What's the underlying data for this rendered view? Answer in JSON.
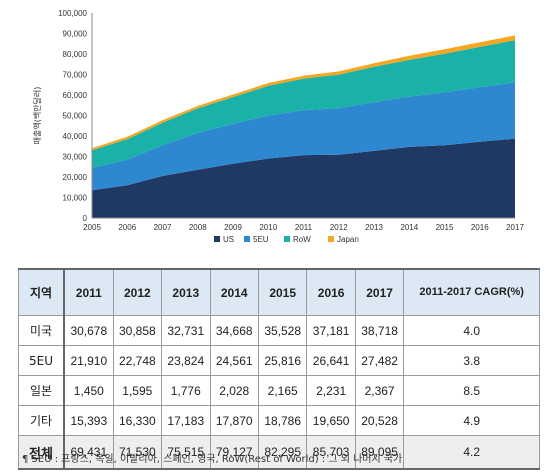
{
  "chart_data": {
    "type": "area",
    "stacked": true,
    "ylabel": "매출액(백만달러)",
    "ylim": [
      0,
      100000
    ],
    "yticks": [
      "0",
      "10,000",
      "20,000",
      "30,000",
      "40,000",
      "50,000",
      "60,000",
      "70,000",
      "80,000",
      "90,000",
      "100,000"
    ],
    "x": [
      "2005",
      "2006",
      "2007",
      "2008",
      "2009",
      "2010",
      "2011",
      "2012",
      "2013",
      "2014",
      "2015",
      "2016",
      "2017"
    ],
    "series": [
      {
        "name": "US",
        "color": "#1f3864",
        "values": [
          13500,
          16000,
          20500,
          23500,
          26500,
          29000,
          30678,
          30858,
          32731,
          34668,
          35528,
          37181,
          38718
        ]
      },
      {
        "name": "5EU",
        "color": "#2e88cf",
        "values": [
          11000,
          12500,
          15000,
          18000,
          19500,
          21000,
          21910,
          22748,
          23824,
          24561,
          25816,
          26641,
          27482
        ]
      },
      {
        "name": "RoW",
        "color": "#1ab2a8",
        "values": [
          8500,
          10000,
          11000,
          12000,
          13000,
          14500,
          15393,
          16330,
          17183,
          17870,
          18786,
          19650,
          20528
        ]
      },
      {
        "name": "Japan",
        "color": "#f5a623",
        "values": [
          1000,
          1100,
          1150,
          1200,
          1250,
          1350,
          1450,
          1595,
          1776,
          2028,
          2165,
          2231,
          2367
        ]
      }
    ],
    "legend_position": "bottom",
    "grid": false
  },
  "table": {
    "headers": [
      "지역",
      "2011",
      "2012",
      "2013",
      "2014",
      "2015",
      "2016",
      "2017",
      "2011-2017 CAGR(%)"
    ],
    "rows": [
      {
        "region": "미국",
        "values": [
          "30,678",
          "30,858",
          "32,731",
          "34,668",
          "35,528",
          "37,181",
          "38,718"
        ],
        "cagr": "4.0"
      },
      {
        "region": "5EU",
        "values": [
          "21,910",
          "22,748",
          "23,824",
          "24,561",
          "25,816",
          "26,641",
          "27,482"
        ],
        "cagr": "3.8"
      },
      {
        "region": "일본",
        "values": [
          "1,450",
          "1,595",
          "1,776",
          "2,028",
          "2,165",
          "2,231",
          "2,367"
        ],
        "cagr": "8.5"
      },
      {
        "region": "기타",
        "values": [
          "15,393",
          "16,330",
          "17,183",
          "17,870",
          "18,786",
          "19,650",
          "20,528"
        ],
        "cagr": "4.9"
      }
    ],
    "total": {
      "region": "전체",
      "values": [
        "69,431",
        "71,530",
        "75,515",
        "79,127",
        "82,295",
        "85,703",
        "89,095"
      ],
      "cagr": "4.2"
    }
  },
  "footnote": "¶ 5EU : 프랑스, 독일, 이탈리아, 스페인, 영국, RoW(Rest of World) : 그 외 나머지 국가"
}
